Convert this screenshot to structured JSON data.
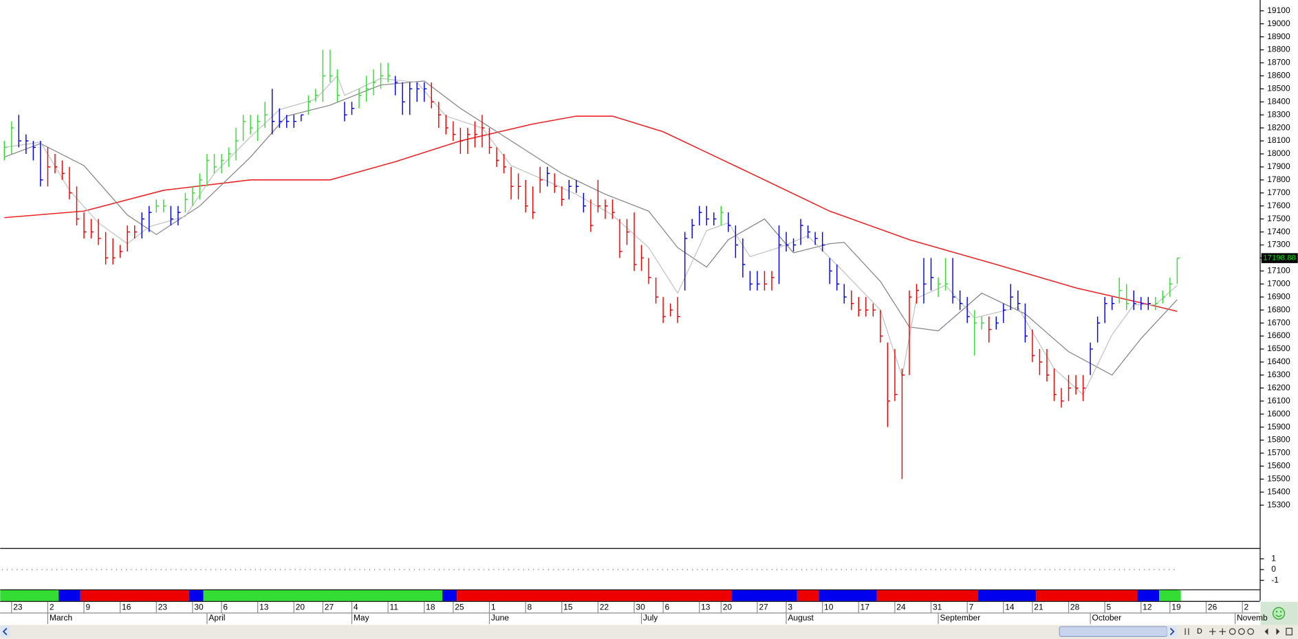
{
  "chart_data": {
    "type": "ohlc",
    "ylim": [
      14970,
      19183
    ],
    "yticks": [
      19100,
      19000,
      18900,
      18800,
      18700,
      18600,
      18500,
      18400,
      18300,
      18200,
      18100,
      18000,
      17900,
      17800,
      17700,
      17600,
      17500,
      17400,
      17300,
      17200,
      17100,
      17000,
      16900,
      16800,
      16700,
      16600,
      16500,
      16400,
      16300,
      16200,
      16100,
      16000,
      15900,
      15800,
      15700,
      15600,
      15500,
      15400,
      15300
    ],
    "xlim": [
      -0.57,
      173.4
    ],
    "palette": {
      "g": "#33dd33",
      "b": "#0000ee",
      "r": "#ee0000"
    },
    "high": [
      18100,
      18250,
      18300,
      18150,
      18100,
      18100,
      18050,
      18000,
      17950,
      17900,
      17750,
      17550,
      17500,
      17500,
      17400,
      17350,
      17300,
      17450,
      17450,
      17550,
      17600,
      17650,
      17650,
      17600,
      17600,
      17700,
      17750,
      17850,
      18000,
      18000,
      18000,
      18050,
      18200,
      18300,
      18300,
      18300,
      18400,
      18500,
      18350,
      18300,
      18300,
      18300,
      18450,
      18500,
      18800,
      18800,
      18650,
      18400,
      18400,
      18500,
      18600,
      18650,
      18700,
      18700,
      18600,
      18550,
      18550,
      18550,
      18550,
      18550,
      18400,
      18300,
      18250,
      18200,
      18200,
      18250,
      18300,
      18200,
      18050,
      18000,
      17900,
      17850,
      17800,
      17750,
      17900,
      17900,
      17850,
      17750,
      17800,
      17800,
      17700,
      17650,
      17800,
      17650,
      17650,
      17500,
      17500,
      17550,
      17300,
      17200,
      17050,
      16900,
      16850,
      16900,
      17400,
      17500,
      17600,
      17600,
      17550,
      17600,
      17550,
      17450,
      17350,
      17100,
      17100,
      17100,
      17100,
      17450,
      17400,
      17350,
      17500,
      17450,
      17400,
      17400,
      17200,
      17150,
      17000,
      16950,
      16900,
      16900,
      16850,
      16800,
      16550,
      16500,
      16350,
      16950,
      17000,
      17200,
      17200,
      17050,
      17200,
      17200,
      16950,
      16900,
      16800,
      16750,
      16750,
      16750,
      16850,
      17000,
      16950,
      16850,
      16650,
      16500,
      16500,
      16350,
      16200,
      16300,
      16300,
      16300,
      16550,
      16750,
      16900,
      16900,
      17050,
      17000,
      16950,
      16900,
      16900,
      16900,
      16950,
      17050,
      17200
    ],
    "low": [
      17950,
      18000,
      18050,
      18000,
      17950,
      17750,
      17750,
      17850,
      17800,
      17650,
      17450,
      17350,
      17350,
      17300,
      17150,
      17150,
      17200,
      17250,
      17350,
      17350,
      17400,
      17550,
      17550,
      17450,
      17450,
      17550,
      17600,
      17650,
      17750,
      17850,
      17850,
      17900,
      17950,
      18100,
      18150,
      18100,
      18200,
      18150,
      18200,
      18200,
      18200,
      18250,
      18300,
      18400,
      18400,
      18550,
      18400,
      18250,
      18300,
      18350,
      18400,
      18450,
      18500,
      18550,
      18450,
      18300,
      18300,
      18400,
      18400,
      18350,
      18200,
      18150,
      18100,
      18000,
      18000,
      18050,
      18050,
      18000,
      17900,
      17850,
      17650,
      17650,
      17550,
      17500,
      17700,
      17750,
      17700,
      17600,
      17650,
      17700,
      17550,
      17400,
      17550,
      17500,
      17500,
      17200,
      17300,
      17100,
      17100,
      17000,
      16850,
      16700,
      16750,
      16700,
      16950,
      17350,
      17450,
      17450,
      17450,
      17450,
      17400,
      17200,
      17050,
      16950,
      16950,
      16950,
      16950,
      17000,
      17250,
      17250,
      17300,
      17350,
      17300,
      17250,
      17000,
      16950,
      16850,
      16800,
      16750,
      16750,
      16750,
      16550,
      15900,
      16100,
      15500,
      16300,
      16850,
      16850,
      16950,
      16900,
      16950,
      16850,
      16800,
      16700,
      16450,
      16650,
      16550,
      16650,
      16700,
      16800,
      16800,
      16550,
      16400,
      16300,
      16250,
      16100,
      16050,
      16100,
      16150,
      16100,
      16300,
      16550,
      16700,
      16800,
      16850,
      16800,
      16800,
      16800,
      16800,
      16800,
      16850,
      16900,
      17000
    ],
    "close": [
      18050,
      18200,
      18100,
      18100,
      18050,
      17800,
      17900,
      17900,
      17850,
      17700,
      17500,
      17400,
      17400,
      17350,
      17200,
      17200,
      17250,
      17400,
      17400,
      17500,
      17550,
      17600,
      17600,
      17500,
      17550,
      17650,
      17700,
      17800,
      17950,
      17900,
      17950,
      18000,
      18100,
      18250,
      18200,
      18250,
      18300,
      18250,
      18250,
      18250,
      18250,
      18300,
      18400,
      18450,
      18600,
      18600,
      18450,
      18300,
      18350,
      18450,
      18500,
      18550,
      18600,
      18600,
      18550,
      18400,
      18500,
      18500,
      18500,
      18400,
      18300,
      18200,
      18150,
      18100,
      18150,
      18150,
      18200,
      18050,
      17950,
      17900,
      17750,
      17750,
      17600,
      17550,
      17800,
      17850,
      17750,
      17650,
      17750,
      17750,
      17600,
      17450,
      17600,
      17600,
      17550,
      17250,
      17400,
      17150,
      17200,
      17050,
      16900,
      16750,
      16800,
      16750,
      17350,
      17450,
      17550,
      17500,
      17500,
      17550,
      17450,
      17300,
      17150,
      17000,
      17000,
      17000,
      17050,
      17300,
      17300,
      17300,
      17450,
      17400,
      17350,
      17300,
      17100,
      17000,
      16900,
      16850,
      16800,
      16800,
      16800,
      16600,
      16100,
      16150,
      16300,
      16900,
      16950,
      17000,
      17050,
      17000,
      17000,
      16900,
      16850,
      16750,
      16700,
      16700,
      16650,
      16700,
      16800,
      16900,
      16850,
      16600,
      16450,
      16400,
      16300,
      16150,
      16100,
      16200,
      16200,
      16200,
      16500,
      16700,
      16850,
      16850,
      16950,
      16850,
      16850,
      16850,
      16850,
      16850,
      16900,
      17000,
      17198.88
    ],
    "colors": [
      "g",
      "g",
      "b",
      "b",
      "b",
      "b",
      "r",
      "r",
      "r",
      "r",
      "r",
      "r",
      "r",
      "r",
      "r",
      "r",
      "r",
      "r",
      "r",
      "b",
      "b",
      "g",
      "g",
      "b",
      "b",
      "g",
      "g",
      "g",
      "g",
      "g",
      "g",
      "g",
      "g",
      "g",
      "g",
      "g",
      "g",
      "b",
      "b",
      "b",
      "b",
      "b",
      "g",
      "g",
      "g",
      "g",
      "g",
      "b",
      "b",
      "g",
      "g",
      "g",
      "g",
      "g",
      "b",
      "b",
      "b",
      "b",
      "b",
      "r",
      "r",
      "r",
      "r",
      "r",
      "r",
      "r",
      "r",
      "r",
      "r",
      "r",
      "r",
      "r",
      "r",
      "r",
      "r",
      "b",
      "r",
      "r",
      "b",
      "b",
      "b",
      "r",
      "r",
      "r",
      "r",
      "r",
      "r",
      "r",
      "r",
      "r",
      "r",
      "r",
      "r",
      "r",
      "b",
      "b",
      "b",
      "b",
      "b",
      "g",
      "b",
      "b",
      "b",
      "b",
      "b",
      "r",
      "r",
      "b",
      "b",
      "b",
      "b",
      "b",
      "b",
      "b",
      "b",
      "b",
      "b",
      "r",
      "r",
      "r",
      "r",
      "r",
      "r",
      "r",
      "r",
      "r",
      "r",
      "b",
      "b",
      "g",
      "g",
      "b",
      "b",
      "b",
      "g",
      "g",
      "r",
      "b",
      "b",
      "b",
      "b",
      "b",
      "r",
      "r",
      "r",
      "r",
      "r",
      "r",
      "r",
      "r",
      "b",
      "b",
      "b",
      "b",
      "g",
      "g",
      "b",
      "b",
      "b",
      "g",
      "g",
      "g",
      "g"
    ],
    "moving_averages": [
      {
        "color": "#ee2222",
        "x": [
          0,
          11,
          22,
          34,
          45,
          54,
          63,
          73,
          79,
          84,
          91,
          102,
          114,
          125,
          137,
          148,
          159,
          162
        ],
        "values": [
          17510,
          17560,
          17720,
          17800,
          17800,
          17940,
          18100,
          18230,
          18290,
          18290,
          18170,
          17880,
          17560,
          17340,
          17150,
          16970,
          16830,
          16790
        ]
      },
      {
        "color": "#808080",
        "x": [
          0,
          5,
          11,
          17,
          21,
          27,
          34,
          39,
          45,
          52,
          58,
          63,
          70,
          77,
          83,
          89,
          93,
          97,
          100,
          105,
          109,
          114,
          116,
          121,
          125,
          129,
          135,
          141,
          147,
          153,
          157,
          162
        ],
        "values": [
          17975,
          18080,
          17910,
          17530,
          17380,
          17600,
          17975,
          18290,
          18375,
          18530,
          18560,
          18350,
          18100,
          17850,
          17690,
          17560,
          17280,
          17130,
          17340,
          17500,
          17240,
          17310,
          17320,
          17020,
          16670,
          16640,
          16930,
          16770,
          16480,
          16300,
          16580,
          16880
        ]
      },
      {
        "color": "#c0c0c0",
        "x": [
          0,
          5,
          9,
          13,
          17,
          20,
          25,
          29,
          34,
          38,
          43,
          46,
          47,
          52,
          57,
          61,
          66,
          70,
          75,
          79,
          84,
          89,
          93,
          97,
          100,
          103,
          107,
          111,
          116,
          121,
          124,
          126,
          130,
          134,
          140,
          145,
          149,
          153,
          156,
          159,
          162
        ],
        "values": [
          18050,
          18090,
          17720,
          17470,
          17310,
          17440,
          17520,
          17850,
          18130,
          18340,
          18420,
          18600,
          18450,
          18580,
          18550,
          18290,
          18200,
          17910,
          17790,
          17690,
          17530,
          17280,
          16930,
          17410,
          17470,
          17210,
          17280,
          17370,
          17090,
          16800,
          16290,
          16890,
          16990,
          16740,
          16820,
          16350,
          16150,
          16610,
          16840,
          16840,
          16990
        ]
      }
    ],
    "indicator_ticks": [
      1,
      0,
      -1
    ],
    "indicator_line": 0,
    "band": [
      {
        "color": "g",
        "count": 8
      },
      {
        "color": "b",
        "count": 3
      },
      {
        "color": "r",
        "count": 15
      },
      {
        "color": "b",
        "count": 2
      },
      {
        "color": "g",
        "count": 33
      },
      {
        "color": "b",
        "count": 2
      },
      {
        "color": "r",
        "count": 38
      },
      {
        "color": "b",
        "count": 9
      },
      {
        "color": "r",
        "count": 3
      },
      {
        "color": "b",
        "count": 8
      },
      {
        "color": "r",
        "count": 14
      },
      {
        "color": "b",
        "count": 8
      },
      {
        "color": "r",
        "count": 14
      },
      {
        "color": "b",
        "count": 3
      },
      {
        "color": "g",
        "count": 3
      }
    ],
    "xticks": [
      {
        "value": 1,
        "label": "23"
      },
      {
        "value": 6,
        "label": "2"
      },
      {
        "value": 11,
        "label": "9"
      },
      {
        "value": 16,
        "label": "16"
      },
      {
        "value": 21,
        "label": "23"
      },
      {
        "value": 26,
        "label": "30"
      },
      {
        "value": 30,
        "label": "6"
      },
      {
        "value": 35,
        "label": "13"
      },
      {
        "value": 40,
        "label": "20"
      },
      {
        "value": 44,
        "label": "27"
      },
      {
        "value": 48,
        "label": "4"
      },
      {
        "value": 53,
        "label": "11"
      },
      {
        "value": 58,
        "label": "18"
      },
      {
        "value": 62,
        "label": "25"
      },
      {
        "value": 67,
        "label": "1"
      },
      {
        "value": 72,
        "label": "8"
      },
      {
        "value": 77,
        "label": "15"
      },
      {
        "value": 82,
        "label": "22"
      },
      {
        "value": 87,
        "label": "30"
      },
      {
        "value": 91,
        "label": "6"
      },
      {
        "value": 96,
        "label": "13"
      },
      {
        "value": 99,
        "label": "20"
      },
      {
        "value": 104,
        "label": "27"
      },
      {
        "value": 108,
        "label": "3"
      },
      {
        "value": 113,
        "label": "10"
      },
      {
        "value": 118,
        "label": "17"
      },
      {
        "value": 123,
        "label": "24"
      },
      {
        "value": 128,
        "label": "31"
      },
      {
        "value": 133,
        "label": "7"
      },
      {
        "value": 138,
        "label": "14"
      },
      {
        "value": 142,
        "label": "21"
      },
      {
        "value": 147,
        "label": "28"
      },
      {
        "value": 152,
        "label": "5"
      },
      {
        "value": 157,
        "label": "12"
      },
      {
        "value": 161,
        "label": "19"
      },
      {
        "value": 166,
        "label": "26"
      },
      {
        "value": 171,
        "label": "2"
      }
    ],
    "month_ticks": [
      {
        "value": 6,
        "label": "March"
      },
      {
        "value": 28,
        "label": "April"
      },
      {
        "value": 48,
        "label": "May"
      },
      {
        "value": 67,
        "label": "June"
      },
      {
        "value": 88,
        "label": "July"
      },
      {
        "value": 108,
        "label": "August"
      },
      {
        "value": 129,
        "label": "September"
      },
      {
        "value": 150,
        "label": "October"
      },
      {
        "value": 170,
        "label": "Novemb"
      }
    ]
  }
}
